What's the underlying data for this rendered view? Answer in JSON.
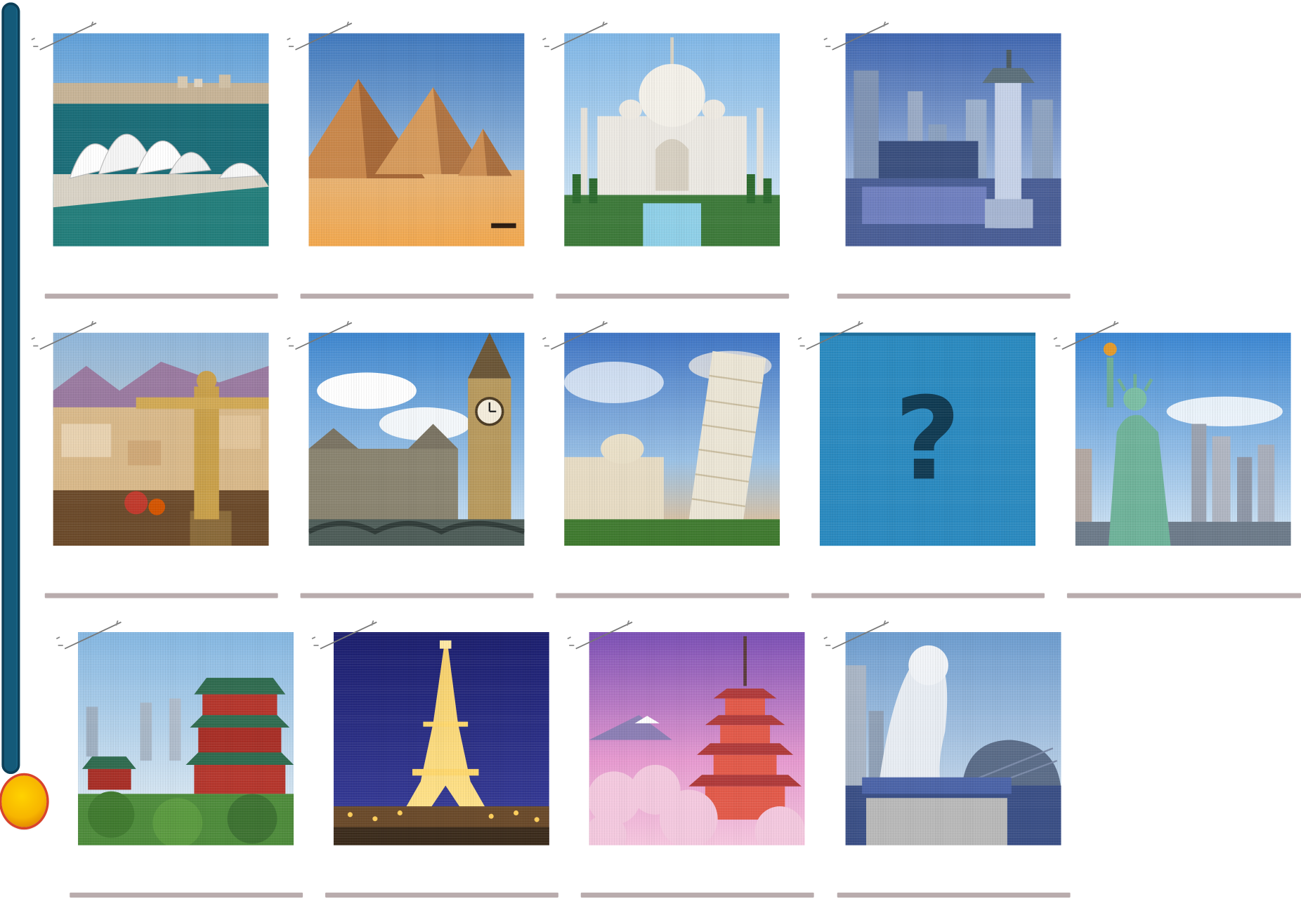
{
  "progress": {
    "value": 1.0,
    "track_color": "#145a79",
    "knob_color": "#f7b500"
  },
  "mystery": {
    "symbol": "?",
    "bg": "#2a8ac0",
    "fg": "#0f3a52"
  },
  "cards": [
    {
      "id": "sydney-opera-house",
      "icon": "sydney-opera-house-image"
    },
    {
      "id": "pyramids-of-giza",
      "icon": "pyramids-image"
    },
    {
      "id": "taj-mahal",
      "icon": "taj-mahal-image"
    },
    {
      "id": "seoul-skyline",
      "icon": "seoul-pagoda-image"
    },
    {
      "id": "christ-the-redeemer",
      "icon": "christ-redeemer-image"
    },
    {
      "id": "big-ben",
      "icon": "big-ben-image"
    },
    {
      "id": "leaning-tower-of-pisa",
      "icon": "pisa-tower-image"
    },
    {
      "id": "mystery",
      "icon": "question-mark-icon"
    },
    {
      "id": "statue-of-liberty",
      "icon": "statue-of-liberty-image"
    },
    {
      "id": "chinese-pavilion",
      "icon": "chinese-pavilion-image"
    },
    {
      "id": "eiffel-tower",
      "icon": "eiffel-tower-image"
    },
    {
      "id": "japanese-pagoda",
      "icon": "japanese-pagoda-image"
    },
    {
      "id": "merlion",
      "icon": "merlion-image"
    }
  ]
}
